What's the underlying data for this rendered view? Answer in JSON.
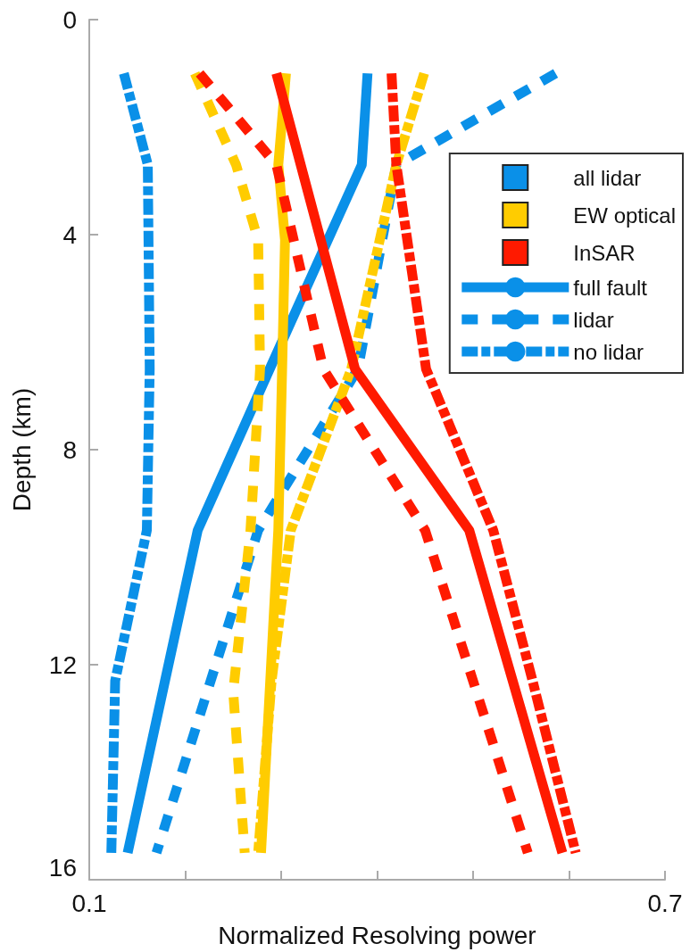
{
  "chart_data": {
    "type": "line",
    "xlabel": "Normalized Resolving power",
    "ylabel": "Depth (km)",
    "xlim": [
      0.1,
      0.7
    ],
    "xticks": [
      0.1,
      {
        "value": 0.2,
        "label": null
      },
      {
        "value": 0.3,
        "label": null
      },
      {
        "value": 0.4,
        "label": null
      },
      {
        "value": 0.5,
        "label": null
      },
      {
        "value": 0.6,
        "label": null
      },
      0.7
    ],
    "ylim": [
      16,
      0
    ],
    "yticks": [
      0,
      4,
      8,
      12,
      16
    ],
    "marker": "none",
    "legend": "top right",
    "series": [
      {
        "color": "#0a90e8",
        "line_style": "solid",
        "x": [
          0.39,
          0.384,
          0.288,
          0.213,
          0.14
        ],
        "values": [
          1,
          2.7,
          6.5,
          9.5,
          15.5
        ]
      },
      {
        "color": "#0a90e8",
        "line_style": "dashed",
        "x": [
          0.586,
          0.42,
          0.38,
          0.276,
          0.17
        ],
        "values": [
          1,
          2.7,
          6.5,
          9.5,
          15.5
        ]
      },
      {
        "color": "#0a90e8",
        "line_style": "dotted",
        "x": [
          0.136,
          0.161,
          0.163,
          0.16,
          0.127,
          0.123
        ],
        "values": [
          1,
          2.7,
          6.5,
          9.5,
          12.3,
          15.5
        ]
      },
      {
        "color": "#ffcc00",
        "line_style": "solid",
        "x": [
          0.305,
          0.297,
          0.304,
          0.301,
          0.297,
          0.279
        ],
        "values": [
          1,
          2.7,
          4.1,
          6.5,
          9.5,
          15.5
        ]
      },
      {
        "color": "#ffcc00",
        "line_style": "dashed",
        "x": [
          0.21,
          0.253,
          0.276,
          0.278,
          0.268,
          0.25,
          0.262
        ],
        "values": [
          1,
          2.7,
          4.1,
          6.5,
          9.5,
          12.5,
          15.5
        ]
      },
      {
        "color": "#ffcc00",
        "line_style": "dotted",
        "x": [
          0.449,
          0.42,
          0.373,
          0.31,
          0.29,
          0.276
        ],
        "values": [
          1,
          2.7,
          6.5,
          9.5,
          12.3,
          15.5
        ]
      },
      {
        "color": "#ff1a00",
        "line_style": "solid",
        "x": [
          0.295,
          0.377,
          0.496,
          0.593
        ],
        "values": [
          1,
          6.5,
          9.5,
          15.5
        ]
      },
      {
        "color": "#ff1a00",
        "line_style": "dashed",
        "x": [
          0.215,
          0.295,
          0.344,
          0.45,
          0.557
        ],
        "values": [
          1,
          2.7,
          6.5,
          9.5,
          15.5
        ]
      },
      {
        "color": "#ff1a00",
        "line_style": "dotted",
        "x": [
          0.415,
          0.42,
          0.451,
          0.521,
          0.562,
          0.607
        ],
        "values": [
          1,
          2.7,
          6.5,
          9.5,
          12.3,
          15.5
        ]
      },
      {
        "name": "all lidar",
        "color": "#0a90e8"
      },
      {
        "name": "EW optical",
        "color": "#ffcc00"
      },
      {
        "name": "InSAR",
        "color": "#ff1a00"
      },
      {
        "name": "full fault",
        "color": "#0a90e8",
        "line_style": "solid"
      },
      {
        "name": "lidar",
        "color": "#0a90e8",
        "line_style": "dashed"
      },
      {
        "name": "no lidar",
        "color": "#0a90e8",
        "line_style": "dotted"
      }
    ]
  }
}
